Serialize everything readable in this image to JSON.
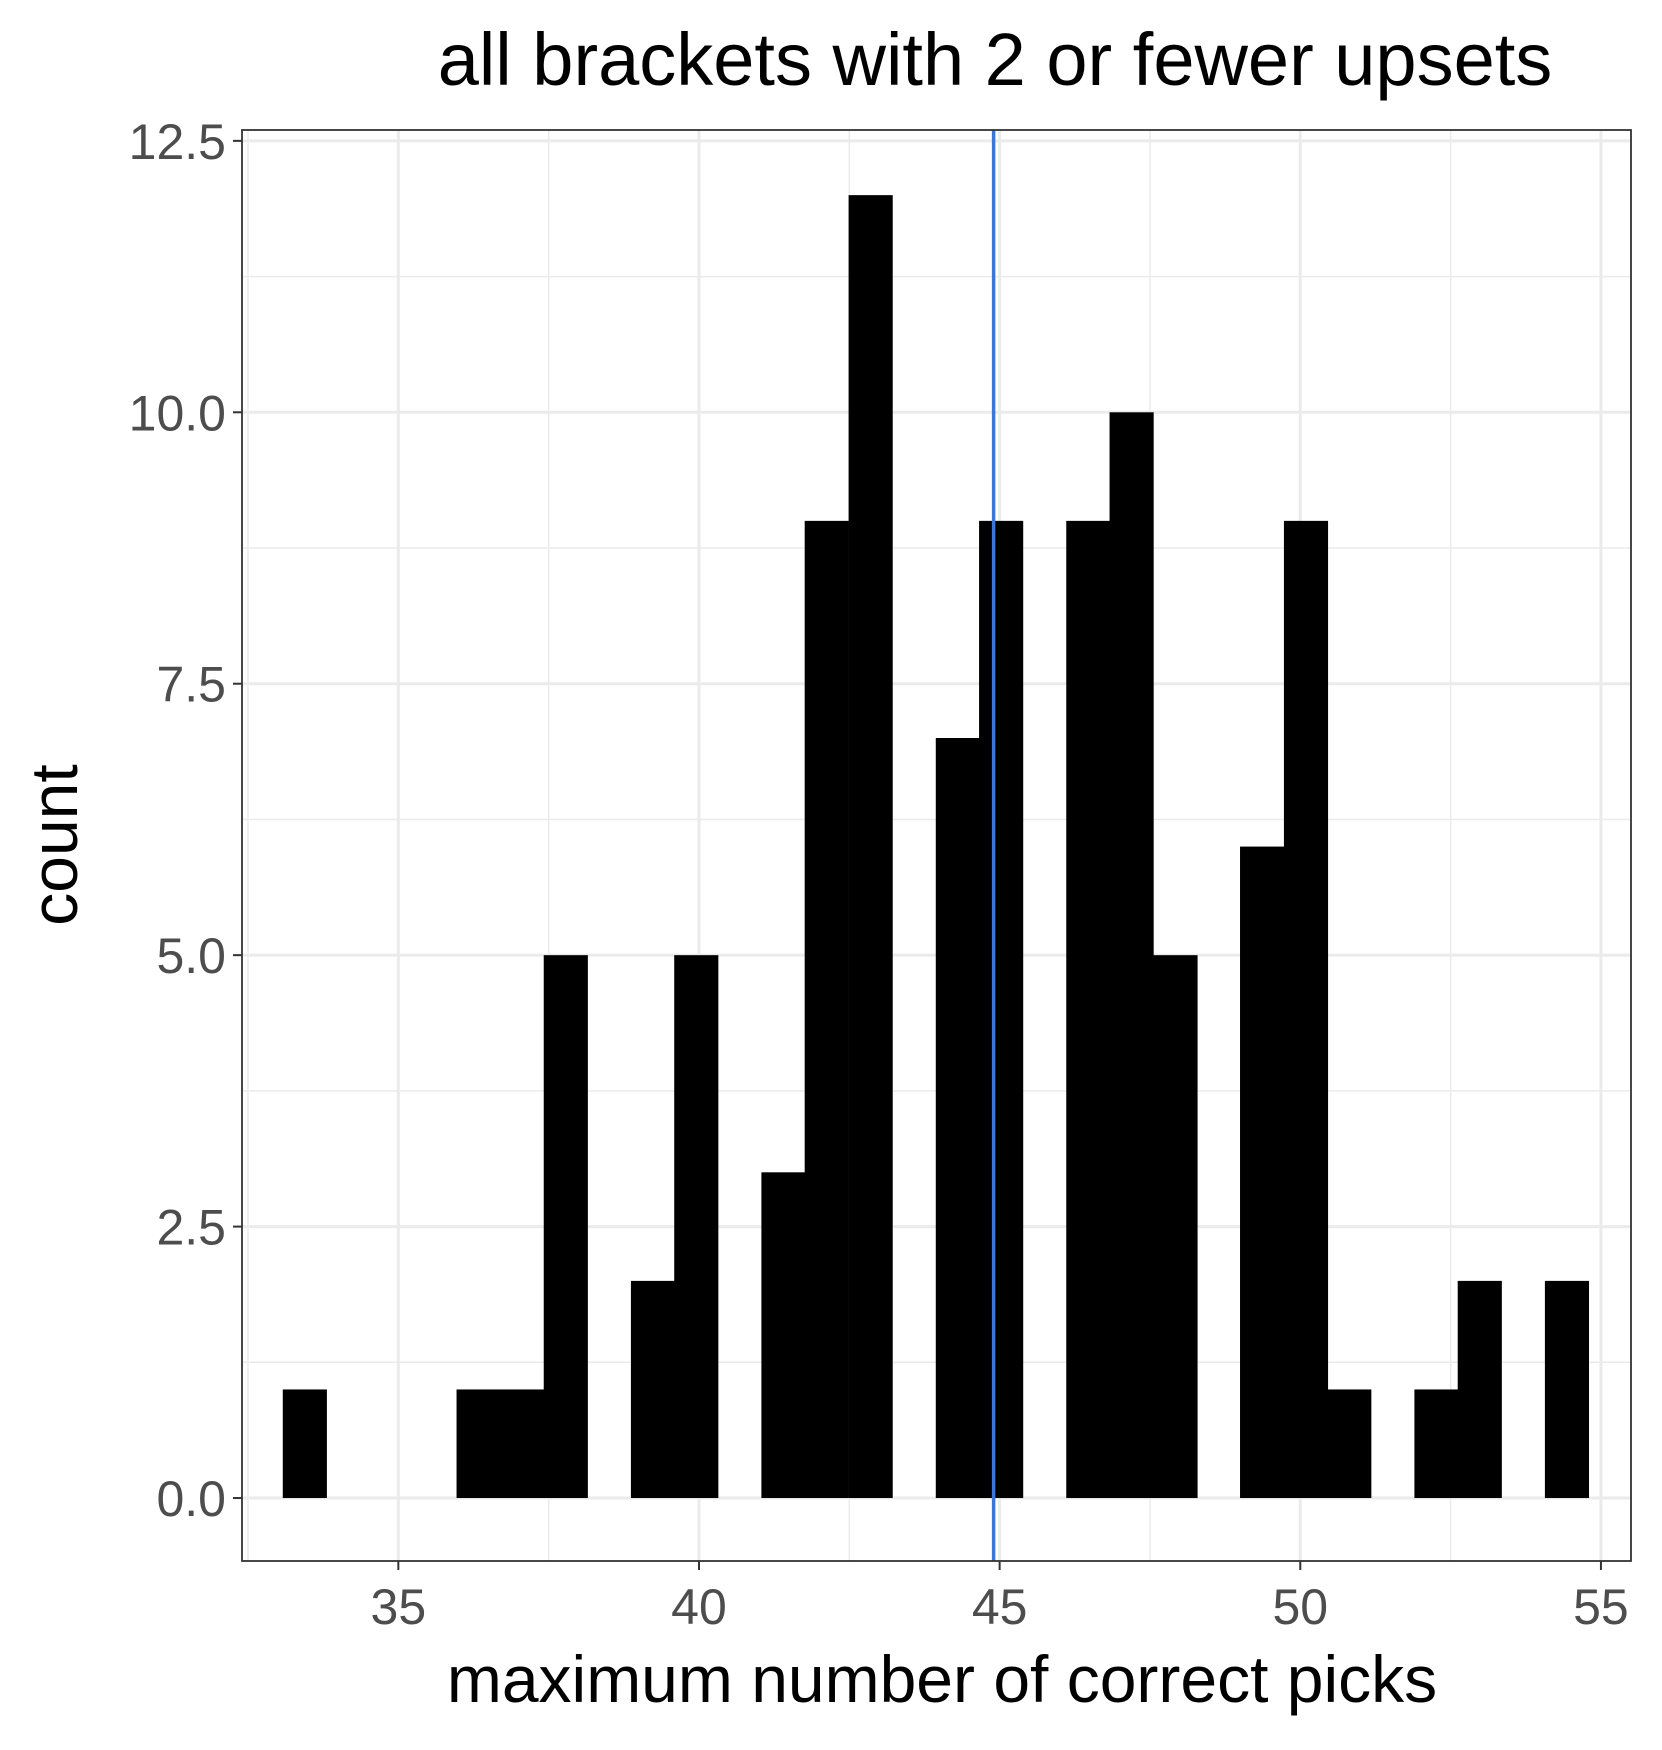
{
  "chart_data": {
    "type": "bar",
    "title": "all brackets with 2 or fewer upsets",
    "xlabel": "maximum number of correct picks",
    "ylabel": "count",
    "xlim": [
      32.4,
      55.5
    ],
    "ylim": [
      -0.58,
      12.6
    ],
    "x_ticks": [
      35,
      40,
      45,
      50,
      55
    ],
    "x_tick_labels": [
      "35",
      "40",
      "45",
      "50",
      "55"
    ],
    "y_ticks": [
      0,
      2.5,
      5,
      7.5,
      10,
      12.5
    ],
    "y_tick_labels": [
      "0.0",
      "2.5",
      "5.0",
      "7.5",
      "10.0",
      "12.5"
    ],
    "bin_width": 0.724,
    "bin_centers": [
      33.44,
      34.16,
      34.88,
      35.61,
      36.33,
      37.06,
      37.78,
      38.5,
      39.23,
      39.95,
      40.68,
      41.4,
      42.12,
      42.85,
      43.57,
      44.3,
      45.02,
      45.74,
      46.47,
      47.19,
      47.92,
      48.64,
      49.36,
      50.09,
      50.81,
      51.54,
      52.26,
      52.98,
      53.71,
      54.43
    ],
    "counts": [
      1,
      0,
      0,
      0,
      1,
      1,
      5,
      0,
      2,
      5,
      0,
      3,
      9,
      12,
      0,
      7,
      9,
      0,
      9,
      10,
      5,
      0,
      6,
      9,
      1,
      0,
      1,
      2,
      0,
      2
    ],
    "vline_x": 44.9,
    "bar_color": "#000000",
    "vline_color": "#3A78D8",
    "grid": true,
    "panel_border": true
  }
}
